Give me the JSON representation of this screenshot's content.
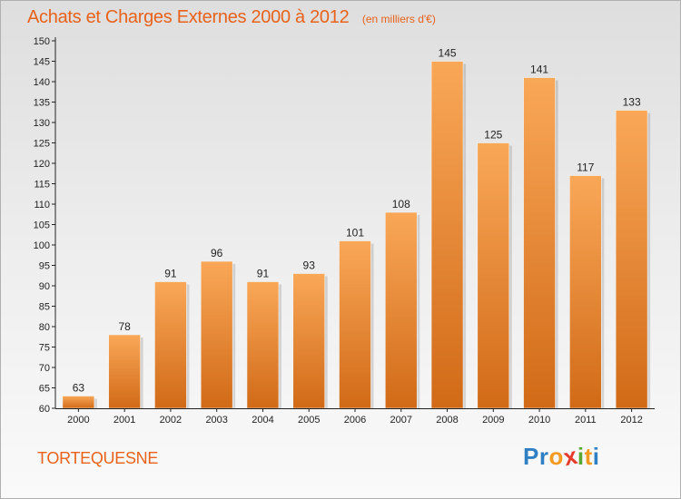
{
  "chart_data": {
    "type": "bar",
    "title": "Achats et Charges Externes 2000 à 2012",
    "unit": "(en milliers d'€)",
    "xlabel": "",
    "ylabel": "",
    "categories": [
      "2000",
      "2001",
      "2002",
      "2003",
      "2004",
      "2005",
      "2006",
      "2007",
      "2008",
      "2009",
      "2010",
      "2011",
      "2012"
    ],
    "values": [
      63,
      78,
      91,
      96,
      91,
      93,
      101,
      108,
      145,
      125,
      141,
      117,
      133
    ],
    "ylim": [
      60,
      150
    ],
    "yticks": [
      60,
      65,
      70,
      75,
      80,
      85,
      90,
      95,
      100,
      105,
      110,
      115,
      120,
      125,
      130,
      135,
      140,
      145,
      150
    ],
    "grid": false,
    "data_labels": true
  },
  "footer": {
    "commune": "TORTEQUESNE",
    "logo_letters": [
      "P",
      "r",
      "o",
      "x",
      "i",
      "t",
      "i"
    ]
  },
  "colors": {
    "accent": "#e8621a",
    "bar_top": "#f9a858",
    "bar_bottom": "#d16a17",
    "logo": [
      "#2e7fc4",
      "#2e7fc4",
      "#f39a21",
      "#e43b2c",
      "#5aa832",
      "#f39a21",
      "#2e7fc4"
    ]
  }
}
